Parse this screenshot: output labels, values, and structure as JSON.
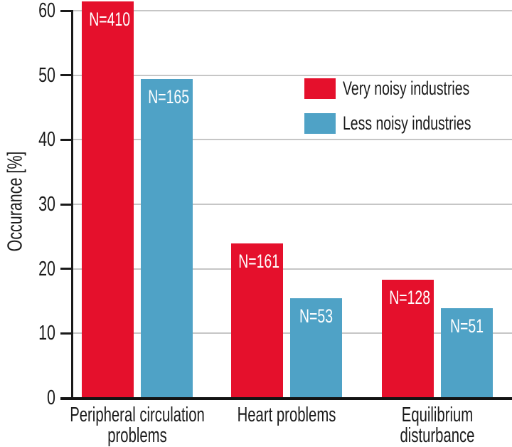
{
  "chart_data": {
    "type": "bar",
    "ylabel": "Occurance [%]",
    "ylim": [
      0,
      60
    ],
    "yticks": [
      0,
      10,
      20,
      30,
      40,
      50,
      60
    ],
    "grid": true,
    "legend_position": "inside-top-right",
    "categories": [
      "Peripheral circulation\nproblems",
      "Heart problems",
      "Equilibrium\ndisturbance"
    ],
    "series": [
      {
        "name": "Very noisy industries",
        "color": "#e5102c",
        "values": [
          61.4,
          23.9,
          18.3
        ],
        "bar_labels": [
          "N=410",
          "N=161",
          "N=128"
        ]
      },
      {
        "name": "Less noisy industries",
        "color": "#4fa2c6",
        "values": [
          49.4,
          15.4,
          13.9
        ],
        "bar_labels": [
          "N=165",
          "N=53",
          "N=51"
        ]
      }
    ],
    "bar_label_color": "#ffffff"
  },
  "colors": {
    "background": "#ffffff",
    "axis": "#1a1a1a",
    "gridline": "#c6c6c6",
    "text": "#1a1a1a"
  }
}
